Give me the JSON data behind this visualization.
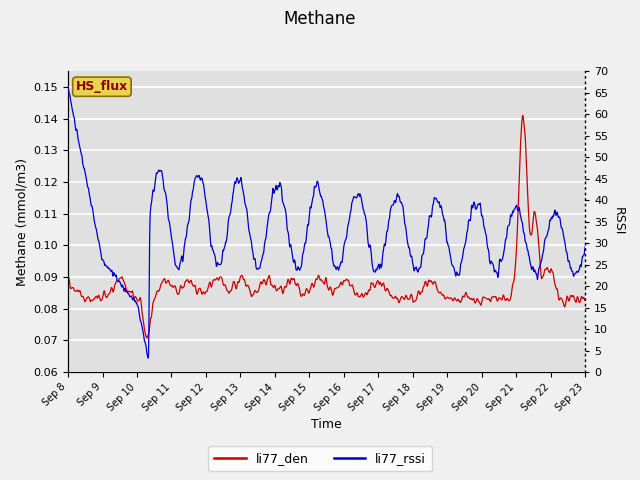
{
  "title": "Methane",
  "xlabel": "Time",
  "ylabel_left": "Methane (mmol/m3)",
  "ylabel_right": "RSSI",
  "ylim_left": [
    0.06,
    0.155
  ],
  "ylim_right": [
    0,
    70
  ],
  "yticks_left": [
    0.06,
    0.07,
    0.08,
    0.09,
    0.1,
    0.11,
    0.12,
    0.13,
    0.14,
    0.15
  ],
  "yticks_right": [
    0,
    5,
    10,
    15,
    20,
    25,
    30,
    35,
    40,
    45,
    50,
    55,
    60,
    65,
    70
  ],
  "color_red": "#cc0000",
  "color_blue": "#0000cc",
  "legend_labels": [
    "li77_den",
    "li77_rssi"
  ],
  "hs_flux_label": "HS_flux",
  "hs_flux_bg": "#e8d44d",
  "hs_flux_text_color": "#8b0000",
  "bg_color": "#f0f0f0",
  "plot_bg": "#e0e0e0",
  "grid_color": "#ffffff",
  "title_fontsize": 12,
  "axis_fontsize": 9,
  "tick_fontsize": 8,
  "legend_fontsize": 9,
  "figsize": [
    6.4,
    4.8
  ],
  "dpi": 100
}
